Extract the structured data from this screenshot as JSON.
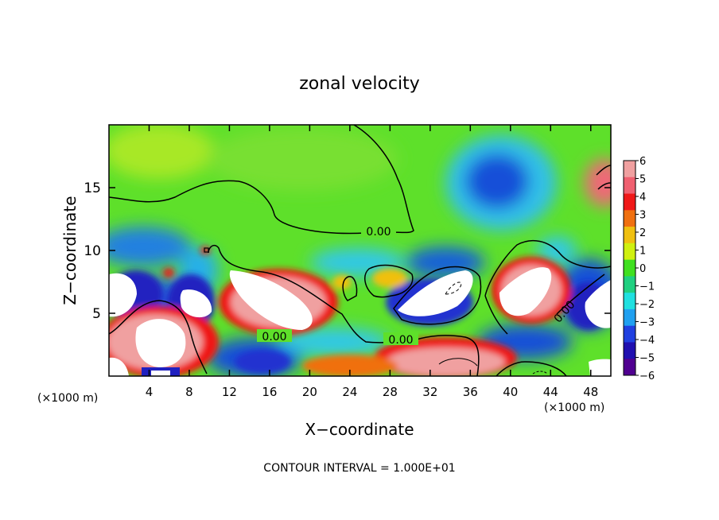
{
  "chart_data": {
    "type": "heatmap",
    "title": "zonal velocity",
    "xlabel": "X−coordinate",
    "ylabel": "Z−coordinate",
    "x_unit_left": "(×1000 m)",
    "x_unit_right": "(×1000 m)",
    "x_ticks": [
      "4",
      "8",
      "12",
      "16",
      "20",
      "24",
      "28",
      "32",
      "36",
      "40",
      "44",
      "48"
    ],
    "x_tick_values": [
      4,
      8,
      12,
      16,
      20,
      24,
      28,
      32,
      36,
      40,
      44,
      48
    ],
    "y_ticks": [
      "5",
      "10",
      "15"
    ],
    "y_tick_values": [
      5,
      10,
      15
    ],
    "xlim": [
      0,
      50
    ],
    "ylim": [
      0,
      20
    ],
    "contour_labels": [
      {
        "text": "0.00",
        "x": 29.5,
        "z": 11.5
      },
      {
        "text": "0.00",
        "x": 16.8,
        "z": 3.1
      },
      {
        "text": "0.00",
        "x": 28.8,
        "z": 2.8
      },
      {
        "text": "0.00",
        "x": 45.2,
        "z": 5.0
      }
    ],
    "colorbar": {
      "labels": [
        "6",
        "5",
        "4",
        "3",
        "2",
        "1",
        "0",
        "−1",
        "−2",
        "−3",
        "−4",
        "−5",
        "−6"
      ],
      "values": [
        6,
        5,
        4,
        3,
        2,
        1,
        0,
        -1,
        -2,
        -3,
        -4,
        -5,
        -6
      ],
      "colors": [
        "#f0a0a0",
        "#f06070",
        "#f01818",
        "#f07010",
        "#f0c010",
        "#d0f010",
        "#40e020",
        "#20d080",
        "#20e0e0",
        "#20a0f0",
        "#2040e0",
        "#2010b0",
        "#500090"
      ]
    },
    "footnote": "CONTOUR INTERVAL = 1.000E+01"
  }
}
